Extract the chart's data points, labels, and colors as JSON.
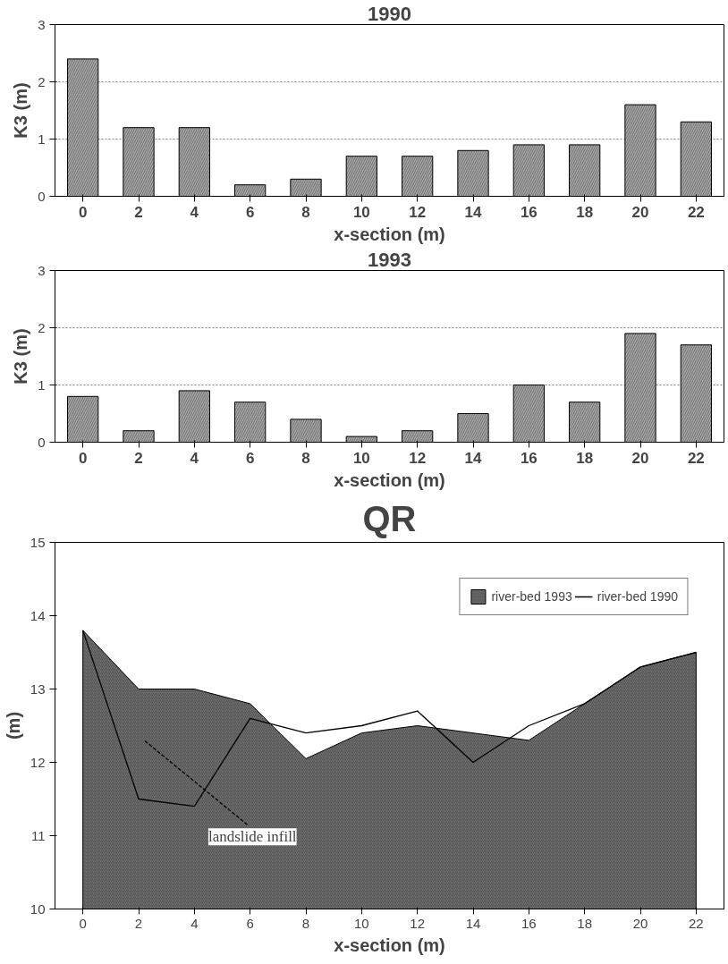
{
  "chart_data": [
    {
      "type": "bar",
      "title": "1990",
      "xlabel": "x-section (m)",
      "ylabel": "K3 (m)",
      "categories": [
        "0",
        "2",
        "4",
        "6",
        "8",
        "10",
        "12",
        "14",
        "16",
        "18",
        "20",
        "22"
      ],
      "values": [
        2.4,
        1.2,
        1.2,
        0.2,
        0.3,
        0.7,
        0.7,
        0.8,
        0.9,
        0.9,
        1.6,
        1.3
      ],
      "color": "#a8a8a8",
      "ylim": [
        0,
        3
      ],
      "yticks": [
        0,
        1,
        2,
        3
      ],
      "grid": "y"
    },
    {
      "type": "bar",
      "title": "1993",
      "xlabel": "x-section (m)",
      "ylabel": "K3 (m)",
      "categories": [
        "0",
        "2",
        "4",
        "6",
        "8",
        "10",
        "12",
        "14",
        "16",
        "18",
        "20",
        "22"
      ],
      "values": [
        0.8,
        0.2,
        0.9,
        0.7,
        0.4,
        0.1,
        0.2,
        0.5,
        1.0,
        0.7,
        1.9,
        1.7
      ],
      "color": "#a8a8a8",
      "ylim": [
        0,
        3
      ],
      "yticks": [
        0,
        1,
        2,
        3
      ],
      "grid": "y"
    },
    {
      "type": "line",
      "title": "QR",
      "xlabel": "x-section (m)",
      "ylabel": "(m)",
      "x": [
        0,
        2,
        4,
        6,
        8,
        10,
        12,
        14,
        16,
        18,
        20,
        22
      ],
      "series": [
        {
          "name": "river-bed 1993",
          "type": "area",
          "color": "#707070",
          "values": [
            13.8,
            13.0,
            13.0,
            12.8,
            12.05,
            12.4,
            12.5,
            12.4,
            12.3,
            12.8,
            13.3,
            13.5
          ]
        },
        {
          "name": "river-bed 1990",
          "type": "line",
          "color": "#000000",
          "values": [
            13.8,
            11.5,
            11.4,
            12.6,
            12.4,
            12.5,
            12.7,
            12.0,
            12.5,
            12.8,
            13.3,
            13.5
          ]
        }
      ],
      "xlim": [
        -1,
        23
      ],
      "xticks": [
        0,
        2,
        4,
        6,
        8,
        10,
        12,
        14,
        16,
        18,
        20,
        22
      ],
      "ylim": [
        10,
        15
      ],
      "yticks": [
        10,
        11,
        12,
        13,
        14,
        15
      ],
      "legend": "top right",
      "annotations": [
        "landslide infill"
      ]
    }
  ]
}
